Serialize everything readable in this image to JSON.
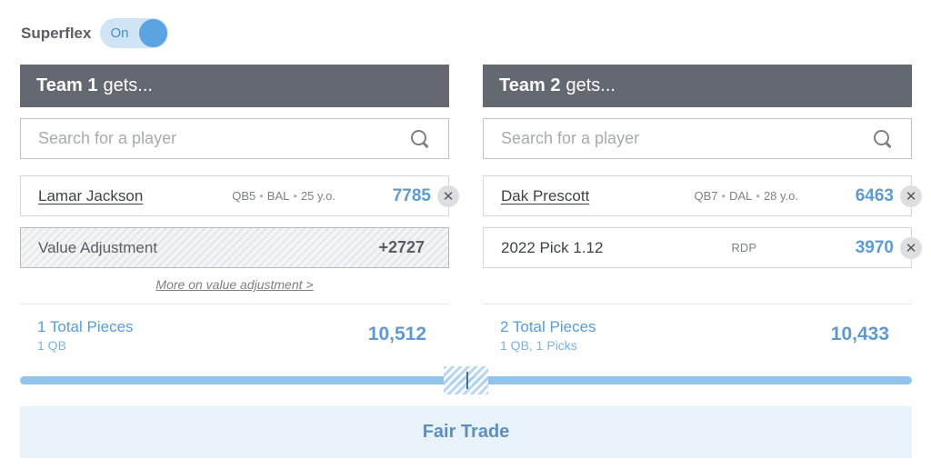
{
  "superflex": {
    "label": "Superflex",
    "toggle_text": "On"
  },
  "team1": {
    "header_name": "Team 1",
    "header_suffix": "gets...",
    "search_placeholder": "Search for a player",
    "players": [
      {
        "name": "Lamar Jackson",
        "position": "QB5",
        "team": "BAL",
        "age": "25 y.o.",
        "value": "7785"
      }
    ],
    "adjustment": {
      "label": "Value Adjustment",
      "value": "+2727"
    },
    "more_link": "More on value adjustment >",
    "totals": {
      "label": "1 Total Pieces",
      "sub": "1 QB",
      "value": "10,512"
    }
  },
  "team2": {
    "header_name": "Team 2",
    "header_suffix": "gets...",
    "search_placeholder": "Search for a player",
    "players": [
      {
        "name": "Dak Prescott",
        "position": "QB7",
        "team": "DAL",
        "age": "28 y.o.",
        "value": "6463"
      },
      {
        "name": "2022 Pick 1.12",
        "meta": "RDP",
        "value": "3970"
      }
    ],
    "totals": {
      "label": "2 Total Pieces",
      "sub": "1 QB, 1 Picks",
      "value": "10,433"
    }
  },
  "verdict": "Fair Trade",
  "icons": {
    "search": "search-icon",
    "remove": "close-icon"
  },
  "colors": {
    "header_bg": "#646870",
    "accent": "#5c9bd0",
    "toggle_knob": "#5ba4e0",
    "verdict_bg": "#e7f2fb"
  }
}
